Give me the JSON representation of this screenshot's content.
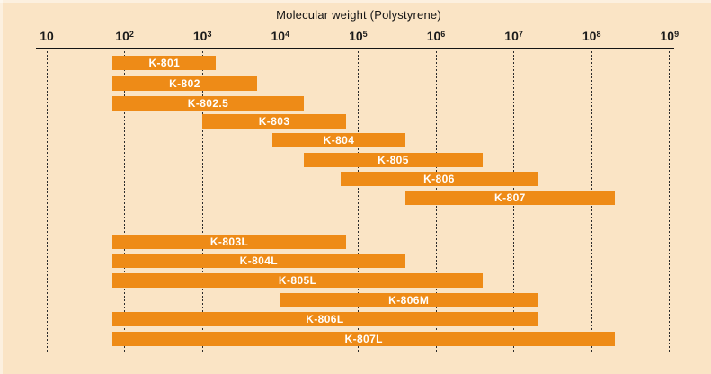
{
  "chart_data": {
    "type": "bar",
    "variant": "horizontal-range-bars",
    "title": "Molecular weight (Polystyrene)",
    "x_scale": "log10",
    "x_axis": {
      "base": 10,
      "exponents": [
        1,
        2,
        3,
        4,
        5,
        6,
        7,
        8,
        9
      ],
      "min": 10,
      "max": 1000000000
    },
    "grid": "vertical dashed line at each decade",
    "legend": "none",
    "colors": {
      "background": "#FAE4C5",
      "bar": "#EE8B17",
      "bar_label": "#FFFFFF",
      "axis": "#141414"
    },
    "upper_group": [
      {
        "label": "K-801",
        "min": 70,
        "max": 1500
      },
      {
        "label": "K-802",
        "min": 70,
        "max": 5000
      },
      {
        "label": "K-802.5",
        "min": 70,
        "max": 20000
      },
      {
        "label": "K-803",
        "min": 1000,
        "max": 70000
      },
      {
        "label": "K-804",
        "min": 8000,
        "max": 400000
      },
      {
        "label": "K-805",
        "min": 20000,
        "max": 4000000
      },
      {
        "label": "K-806",
        "min": 60000,
        "max": 20000000
      },
      {
        "label": "K-807",
        "min": 400000,
        "max": 200000000
      }
    ],
    "lower_group": [
      {
        "label": "K-803L",
        "min": 70,
        "max": 70000
      },
      {
        "label": "K-804L",
        "min": 70,
        "max": 400000
      },
      {
        "label": "K-805L",
        "min": 70,
        "max": 4000000
      },
      {
        "label": "K-806M",
        "min": 10000,
        "max": 20000000
      },
      {
        "label": "K-806L",
        "min": 70,
        "max": 20000000
      },
      {
        "label": "K-807L",
        "min": 70,
        "max": 200000000
      }
    ]
  }
}
